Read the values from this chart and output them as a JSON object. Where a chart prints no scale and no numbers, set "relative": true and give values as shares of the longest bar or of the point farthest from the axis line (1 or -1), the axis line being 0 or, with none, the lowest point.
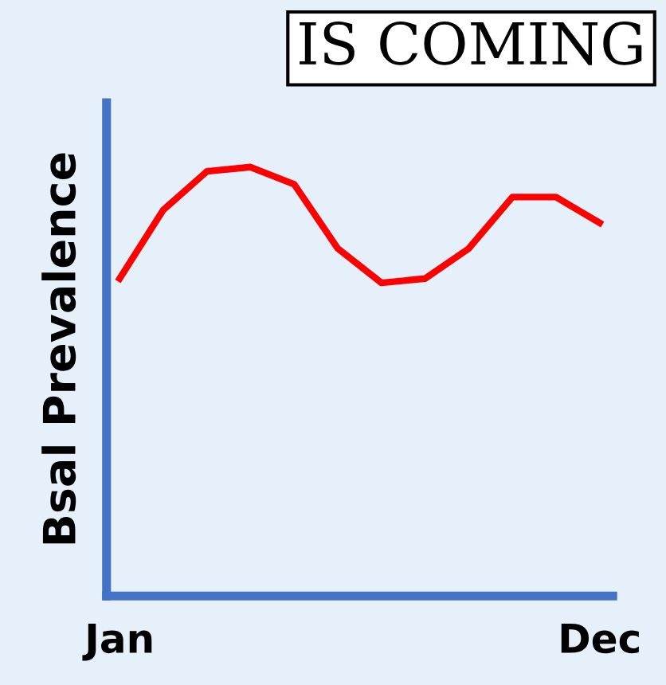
{
  "chart_data": {
    "type": "line",
    "relative": true,
    "ylabel": "Bsal Prevalence",
    "annotations": [
      "IS COMING"
    ],
    "categories": [
      "Jan",
      null,
      null,
      null,
      null,
      null,
      null,
      null,
      null,
      null,
      null,
      "Dec"
    ],
    "series": [
      {
        "color": "#ff0000",
        "values": [
          0.74,
          0.9,
          0.99,
          1.0,
          0.96,
          0.81,
          0.73,
          0.74,
          0.81,
          0.93,
          0.93,
          0.87
        ]
      }
    ],
    "grid": false,
    "legend": false,
    "marker": "none",
    "line_style": "solid"
  }
}
